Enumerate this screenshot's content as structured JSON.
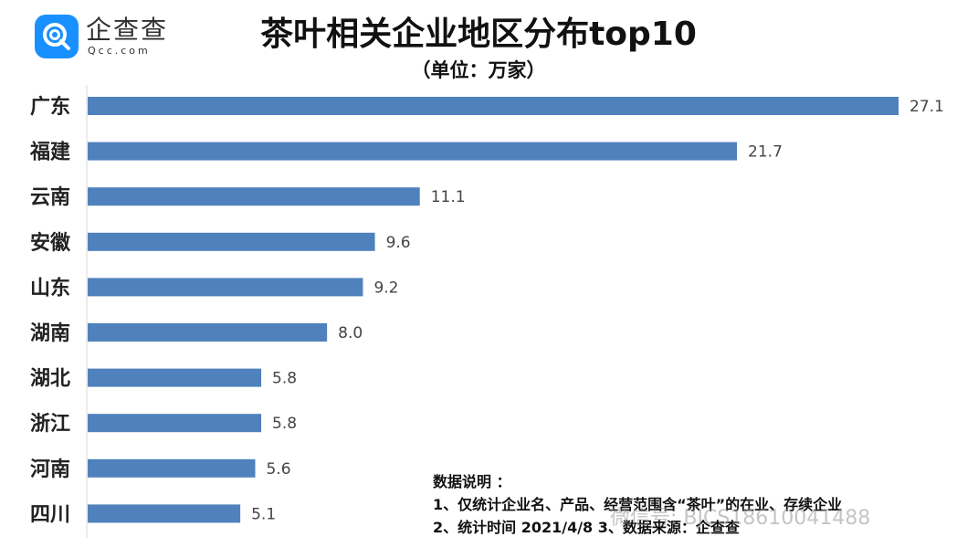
{
  "logo": {
    "name": "企查查",
    "subtitle": "Qcc.com",
    "brand_color": "#1890ff"
  },
  "chart_data": {
    "type": "bar",
    "orientation": "horizontal",
    "title": "茶叶相关企业地区分布top10",
    "subtitle": "（单位：万家）",
    "categories": [
      "广东",
      "福建",
      "云南",
      "安徽",
      "山东",
      "湖南",
      "湖北",
      "浙江",
      "河南",
      "四川"
    ],
    "values": [
      27.1,
      21.7,
      11.1,
      9.6,
      9.2,
      8.0,
      5.8,
      5.8,
      5.6,
      5.1
    ],
    "value_labels": [
      "27.1",
      "21.7",
      "11.1",
      "9.6",
      "9.2",
      "8.0",
      "5.8",
      "5.8",
      "5.6",
      "5.1"
    ],
    "xlim": [
      0,
      27.1
    ],
    "bar_color": "#4f81bd",
    "grid": false,
    "legend": "none"
  },
  "notes": {
    "heading": "数据说明 ：",
    "line1": "1、仅统计企业名、产品、经营范围含“茶叶”的在业、存续企业",
    "line2": "2、统计时间 2021/4/8 3、数据来源：企查查"
  },
  "watermark": "微信号: BJCS18610041488"
}
